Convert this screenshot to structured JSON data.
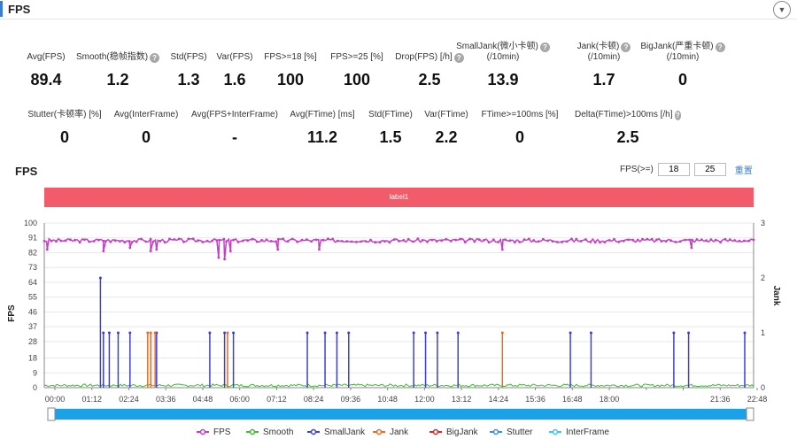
{
  "header": {
    "title": "FPS",
    "collapse_icon": "chevron-down-icon"
  },
  "metrics_row1": [
    {
      "id": "avg-fps",
      "label": "Avg(FPS)",
      "value": "89.4",
      "help": false
    },
    {
      "id": "smooth",
      "label": "Smooth(稳帧指数)",
      "value": "1.2",
      "help": true
    },
    {
      "id": "std-fps",
      "label": "Std(FPS)",
      "value": "1.3",
      "help": false
    },
    {
      "id": "var-fps",
      "label": "Var(FPS)",
      "value": "1.6",
      "help": false
    },
    {
      "id": "fps-ge-18",
      "label": "FPS>=18 [%]",
      "value": "100",
      "help": false
    },
    {
      "id": "fps-ge-25",
      "label": "FPS>=25 [%]",
      "value": "100",
      "help": false
    },
    {
      "id": "drop-fps",
      "label": "Drop(FPS) [/h]",
      "value": "2.5",
      "help": true
    },
    {
      "id": "small-jank",
      "label": "SmallJank(微小卡顿)",
      "label2": "(/10min)",
      "value": "13.9",
      "help": true
    },
    {
      "id": "jank",
      "label": "Jank(卡顿)",
      "label2": "(/10min)",
      "value": "1.7",
      "help": true
    },
    {
      "id": "big-jank",
      "label": "BigJank(严重卡顿)",
      "label2": "(/10min)",
      "value": "0",
      "help": true
    }
  ],
  "metrics_row2": [
    {
      "id": "stutter",
      "label": "Stutter(卡顿率) [%]",
      "value": "0",
      "help": false
    },
    {
      "id": "avg-interframe",
      "label": "Avg(InterFrame)",
      "value": "0",
      "help": false
    },
    {
      "id": "avg-fps-interframe",
      "label": "Avg(FPS+InterFrame)",
      "value": "-",
      "help": false
    },
    {
      "id": "avg-ftime",
      "label": "Avg(FTime) [ms]",
      "value": "11.2",
      "help": false
    },
    {
      "id": "std-ftime",
      "label": "Std(FTime)",
      "value": "1.5",
      "help": false
    },
    {
      "id": "var-ftime",
      "label": "Var(FTime)",
      "value": "2.2",
      "help": false
    },
    {
      "id": "ftime-ge-100",
      "label": "FTime>=100ms [%]",
      "value": "0",
      "help": false
    },
    {
      "id": "delta-ftime",
      "label": "Delta(FTime)>100ms [/h]",
      "value": "2.5",
      "help": true
    }
  ],
  "chart_section": {
    "title": "FPS",
    "threshold_label": "FPS(>=)",
    "threshold_1": "18",
    "threshold_2": "25",
    "reset_label": "重置",
    "band_label": "label1"
  },
  "chart_data": {
    "type": "line",
    "ylabel": "FPS",
    "y2label": "Jank",
    "ylim": [
      0,
      100
    ],
    "y2lim": [
      0,
      3
    ],
    "yticks": [
      "100",
      "91",
      "82",
      "73",
      "64",
      "55",
      "46",
      "37",
      "28",
      "18",
      "9",
      "0"
    ],
    "y2ticks": [
      "3",
      "2",
      "1",
      "0"
    ],
    "xticks": [
      "00:00",
      "01:12",
      "02:24",
      "03:36",
      "04:48",
      "06:00",
      "07:12",
      "08:24",
      "09:36",
      "10:48",
      "12:00",
      "13:12",
      "14:24",
      "15:36",
      "16:48",
      "18:00",
      "",
      "",
      "21:36",
      "22:48"
    ],
    "duration_min": 24,
    "fps_baseline": 89.4,
    "fps_dips": [
      {
        "t": 0.1,
        "v": 84
      },
      {
        "t": 2.0,
        "v": 83
      },
      {
        "t": 2.9,
        "v": 85
      },
      {
        "t": 3.6,
        "v": 83
      },
      {
        "t": 3.8,
        "v": 84
      },
      {
        "t": 5.9,
        "v": 79
      },
      {
        "t": 6.1,
        "v": 78
      },
      {
        "t": 6.3,
        "v": 83
      },
      {
        "t": 7.9,
        "v": 84
      },
      {
        "t": 9.3,
        "v": 84
      },
      {
        "t": 15.5,
        "v": 84
      },
      {
        "t": 21.9,
        "v": 85
      }
    ],
    "series": [
      {
        "name": "FPS",
        "color": "#c83bc8"
      },
      {
        "name": "Smooth",
        "color": "#46b53c"
      },
      {
        "name": "SmallJank",
        "color": "#3c3fd8",
        "events": [
          {
            "t": 1.9,
            "v": 2
          },
          {
            "t": 2.0,
            "v": 1
          },
          {
            "t": 2.2,
            "v": 1
          },
          {
            "t": 2.5,
            "v": 1
          },
          {
            "t": 2.9,
            "v": 1
          },
          {
            "t": 3.8,
            "v": 1
          },
          {
            "t": 5.6,
            "v": 1
          },
          {
            "t": 6.1,
            "v": 1
          },
          {
            "t": 6.4,
            "v": 1
          },
          {
            "t": 8.9,
            "v": 1
          },
          {
            "t": 9.5,
            "v": 1
          },
          {
            "t": 9.9,
            "v": 1
          },
          {
            "t": 10.3,
            "v": 1
          },
          {
            "t": 12.5,
            "v": 1
          },
          {
            "t": 12.9,
            "v": 1
          },
          {
            "t": 13.3,
            "v": 1
          },
          {
            "t": 14.0,
            "v": 1
          },
          {
            "t": 17.8,
            "v": 1
          },
          {
            "t": 18.5,
            "v": 1
          },
          {
            "t": 21.3,
            "v": 1
          },
          {
            "t": 21.8,
            "v": 1
          },
          {
            "t": 23.7,
            "v": 1
          }
        ]
      },
      {
        "name": "Jank",
        "color": "#ef6a20",
        "events": [
          {
            "t": 3.5,
            "v": 1
          },
          {
            "t": 3.6,
            "v": 1
          },
          {
            "t": 3.75,
            "v": 1
          },
          {
            "t": 6.2,
            "v": 1
          },
          {
            "t": 15.5,
            "v": 1
          }
        ]
      },
      {
        "name": "BigJank",
        "color": "#d8282a"
      },
      {
        "name": "Stutter",
        "color": "#3c8ce0"
      },
      {
        "name": "InterFrame",
        "color": "#3cc8e6"
      }
    ],
    "legend_position": "bottom",
    "grid": true
  }
}
